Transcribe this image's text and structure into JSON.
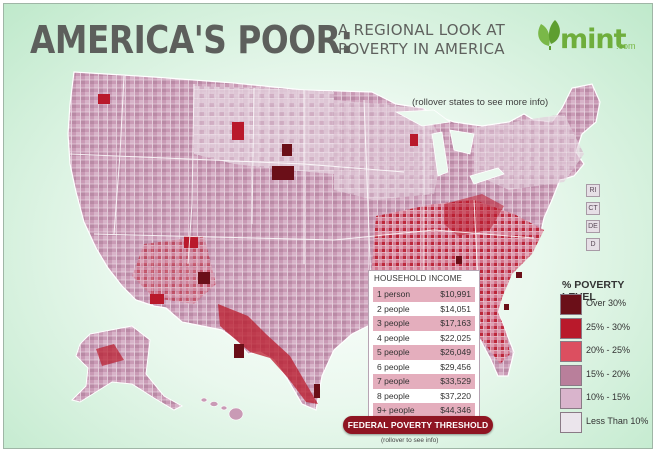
{
  "header": {
    "title": "AMERICA'S POOR:",
    "subtitle_line1": "A REGIONAL LOOK AT",
    "subtitle_line2": "POVERTY IN AMERICA",
    "logo_text": "mint",
    "logo_suffix": ".com"
  },
  "rollover_note": "(rollover states to see more info)",
  "state_tags": [
    "RI",
    "CT",
    "DE",
    "D"
  ],
  "household_income": {
    "title": "HOUSEHOLD INCOME",
    "rows": [
      {
        "people": "1 person",
        "value": "$10,991"
      },
      {
        "people": "2 people",
        "value": "$14,051"
      },
      {
        "people": "3 people",
        "value": "$17,163"
      },
      {
        "people": "4 people",
        "value": "$22,025"
      },
      {
        "people": "5 people",
        "value": "$26,049"
      },
      {
        "people": "6 people",
        "value": "$29,456"
      },
      {
        "people": "7 people",
        "value": "$33,529"
      },
      {
        "people": "8 people",
        "value": "$37,220"
      },
      {
        "people": "9+ people",
        "value": "$44,346"
      }
    ]
  },
  "threshold_button": "FEDERAL POVERTY THRESHOLD",
  "threshold_note": "(rollover to see info)",
  "legend": {
    "title": "% POVERTY LEVEL",
    "items": [
      {
        "label": "Over 30%",
        "color": "#6b0f18"
      },
      {
        "label": "25% - 30%",
        "color": "#b9192b"
      },
      {
        "label": "20% - 25%",
        "color": "#dc4f60"
      },
      {
        "label": "15% - 20%",
        "color": "#b97f9b"
      },
      {
        "label": "10% - 15%",
        "color": "#d9b4cc"
      },
      {
        "label": "Less Than 10%",
        "color": "#ebe5ec"
      }
    ]
  },
  "colors": {
    "title": "#5d5f5c",
    "background_edge": "#bfe9cb",
    "button": "#8f1522",
    "logo_green": "#6fae3c"
  }
}
